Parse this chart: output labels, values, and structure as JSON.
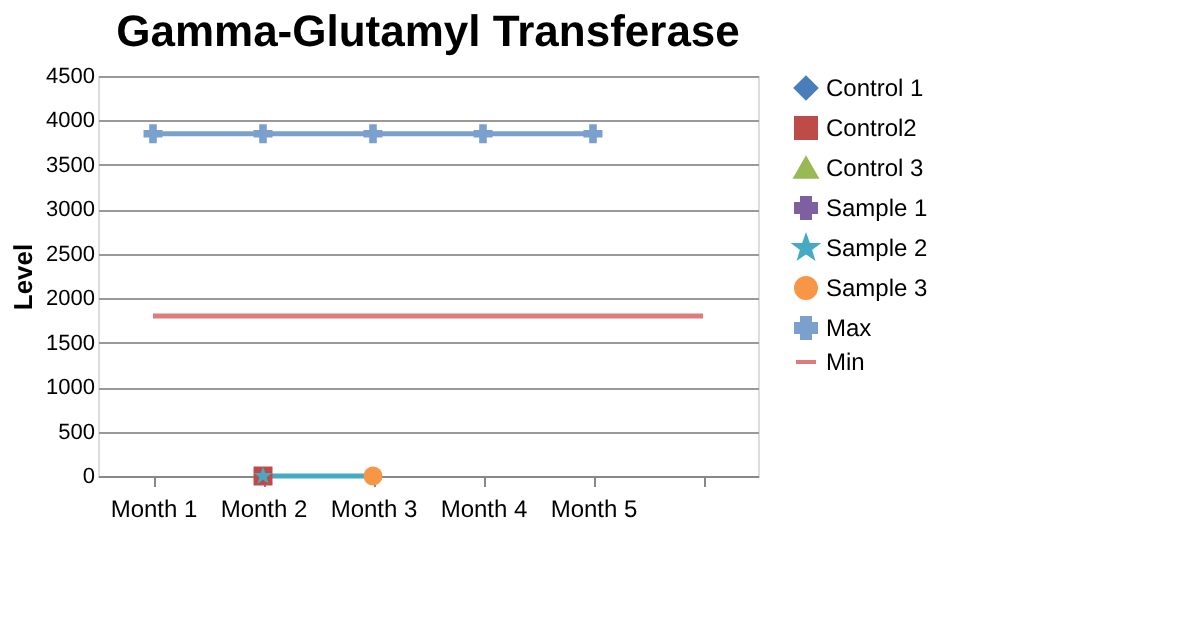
{
  "chart_data": {
    "type": "line",
    "title": "Gamma-Glutamyl Transferase",
    "ylabel": "Level",
    "categories": [
      "Month 1",
      "Month 2",
      "Month 3",
      "Month 4",
      "Month 5",
      null
    ],
    "ylim": [
      0,
      4500
    ],
    "yticks": [
      0,
      500,
      1000,
      1500,
      2000,
      2500,
      3000,
      3500,
      4000,
      4500
    ],
    "grid": "y",
    "legend": "right",
    "series": [
      {
        "name": "Control 1",
        "color": "#4a7ebb",
        "marker": "diamond",
        "values": [
          null,
          null,
          null,
          null,
          null,
          null
        ]
      },
      {
        "name": "Control2",
        "color": "#be4b48",
        "marker": "square",
        "values": [
          null,
          0,
          null,
          null,
          null,
          null
        ]
      },
      {
        "name": "Control 3",
        "color": "#98b954",
        "marker": "triangle",
        "values": [
          null,
          null,
          null,
          null,
          null,
          null
        ]
      },
      {
        "name": "Sample 1",
        "color": "#7d60a0",
        "marker": "cross",
        "values": [
          null,
          null,
          null,
          null,
          null,
          null
        ]
      },
      {
        "name": "Sample 2",
        "color": "#46aac5",
        "marker": "star",
        "values": [
          null,
          0,
          0,
          null,
          null,
          null
        ]
      },
      {
        "name": "Sample 3",
        "color": "#f79646",
        "marker": "circle",
        "values": [
          null,
          null,
          0,
          null,
          null,
          null
        ]
      },
      {
        "name": "Max",
        "color": "#7ba0cd",
        "marker": "cross",
        "values": [
          3850,
          3850,
          3850,
          3850,
          3850,
          null
        ]
      },
      {
        "name": "Min",
        "color": "#e07b7b",
        "marker": "none",
        "values": [
          1800,
          1800,
          1800,
          1800,
          1800,
          1800
        ]
      }
    ]
  }
}
